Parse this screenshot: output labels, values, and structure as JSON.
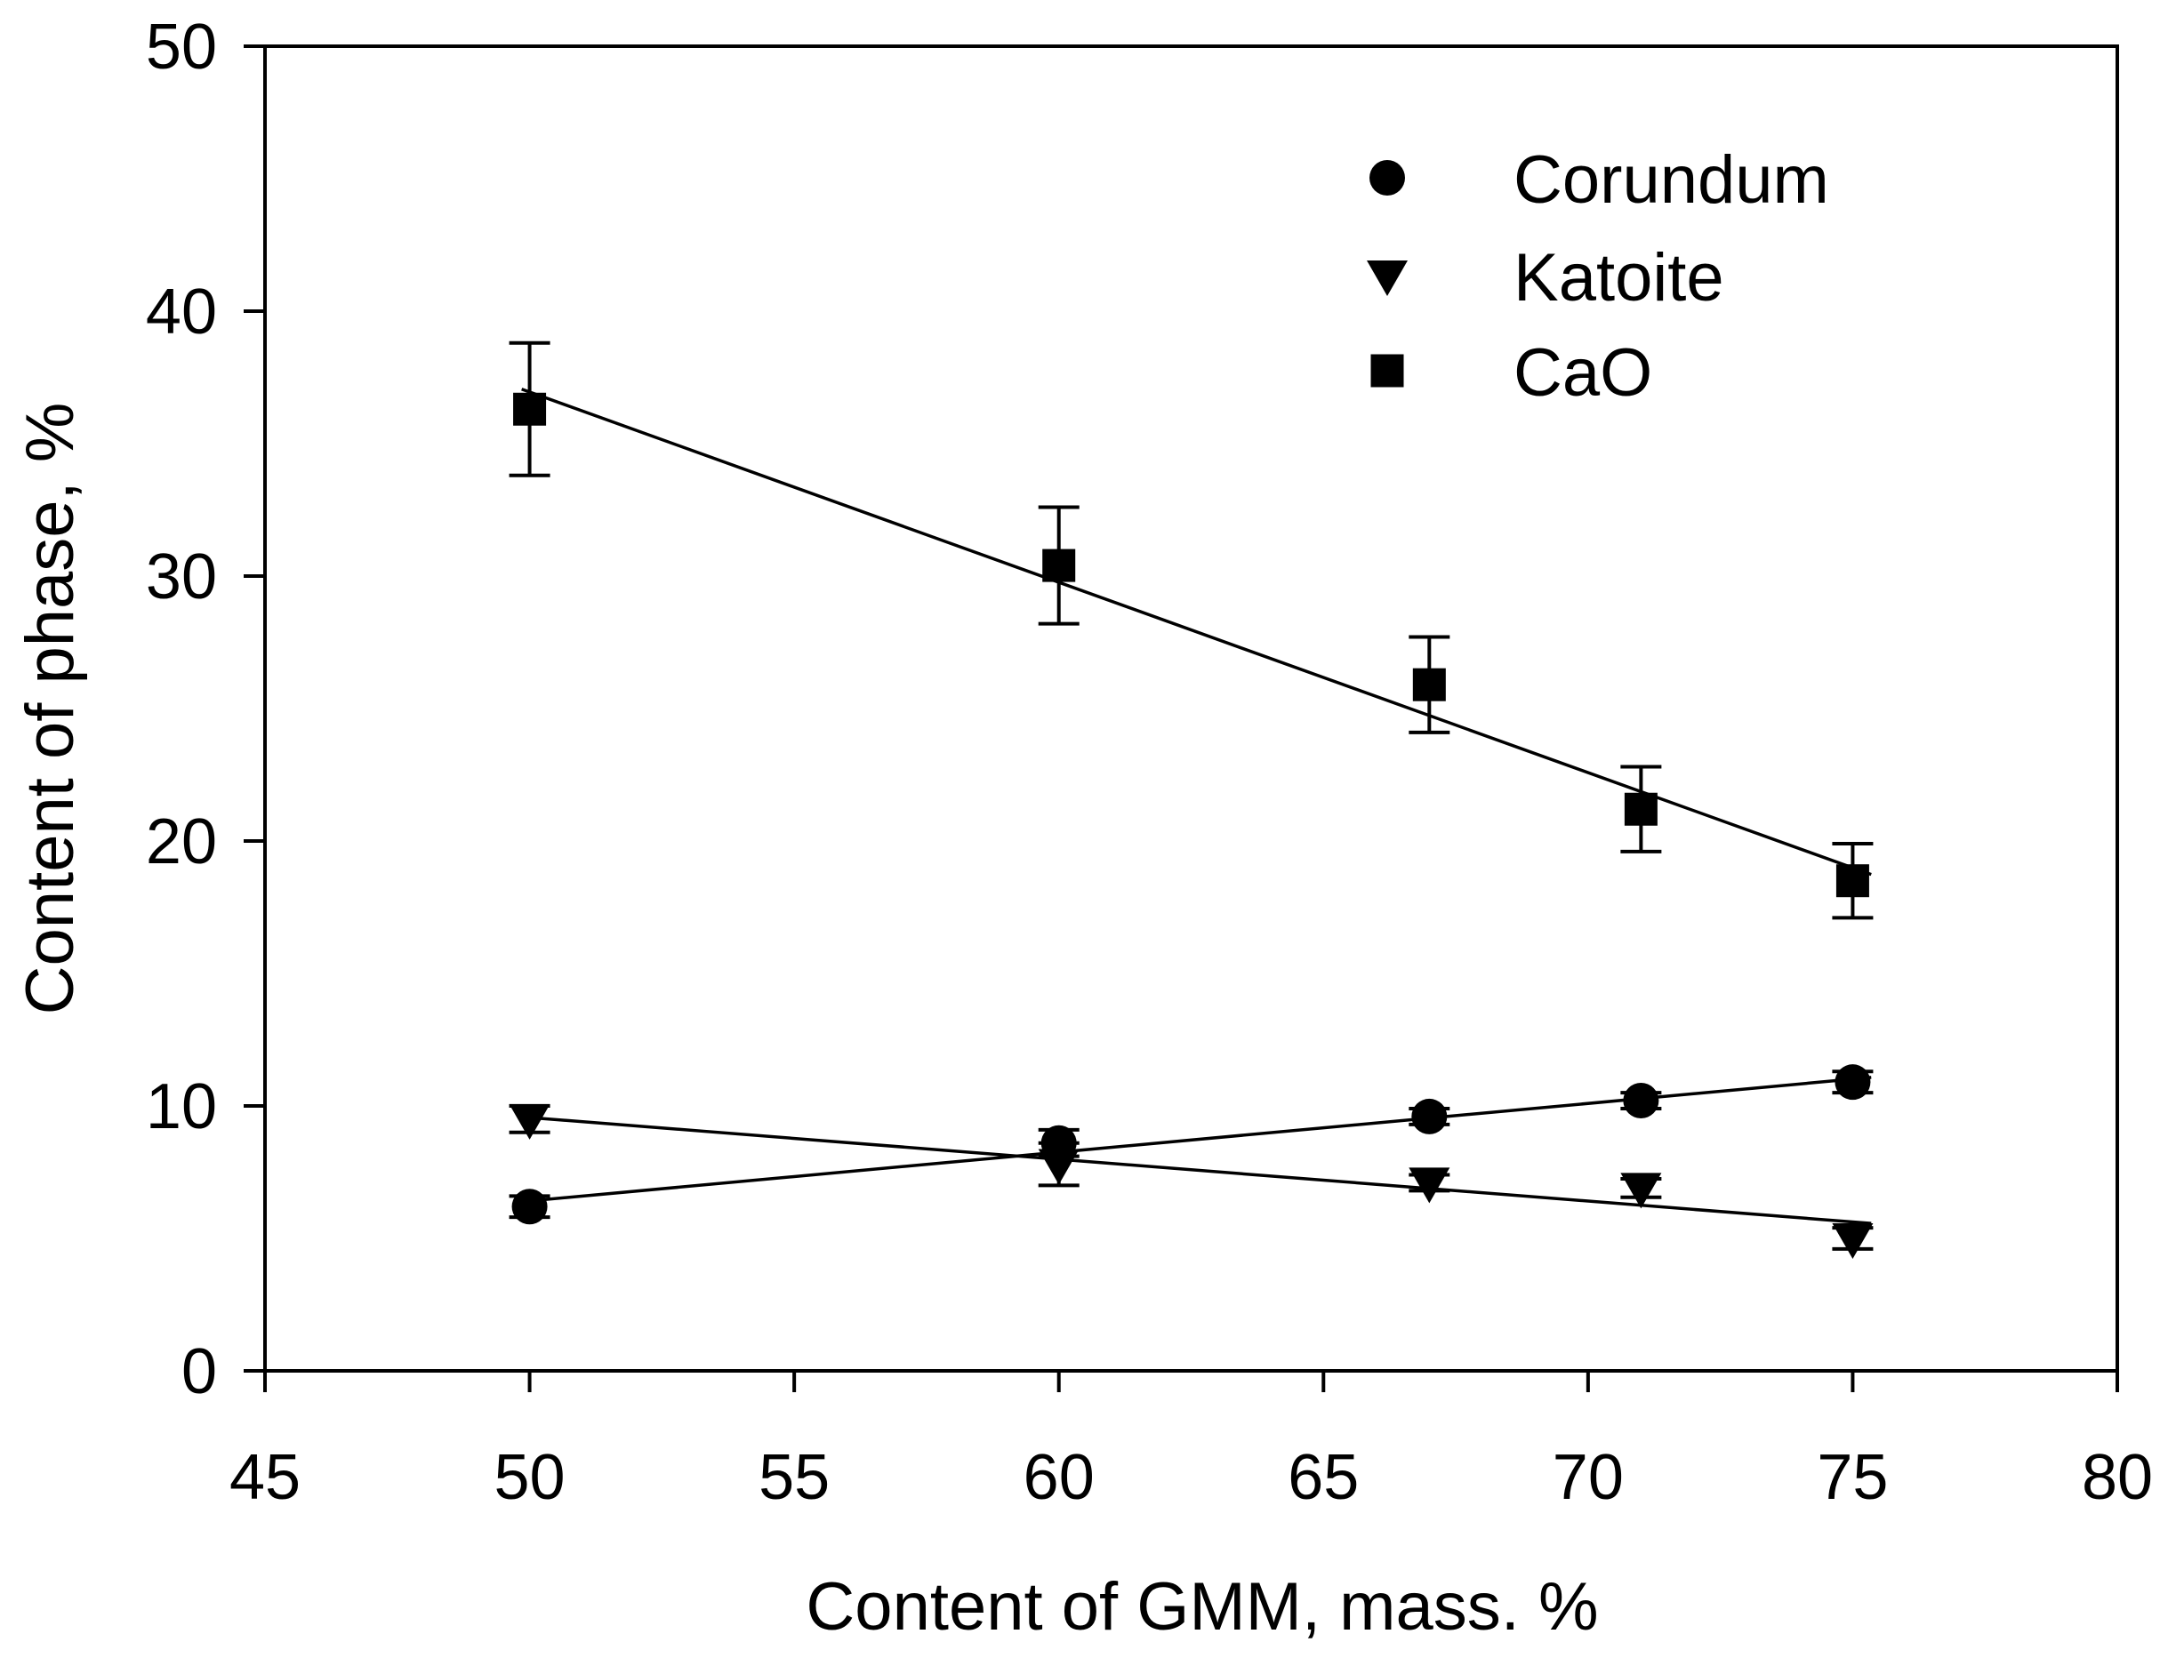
{
  "figure": {
    "background_color": "#ffffff",
    "foreground_color": "#000000"
  },
  "chart_data": {
    "type": "scatter",
    "title": "",
    "xlabel": "Content of GMM, mass. %",
    "ylabel": "Content of phase, %",
    "xlim": [
      45,
      80
    ],
    "ylim": [
      0,
      50
    ],
    "x_ticks": [
      45,
      50,
      55,
      60,
      65,
      70,
      75,
      80
    ],
    "y_ticks": [
      0,
      10,
      20,
      30,
      40,
      50
    ],
    "grid": false,
    "frame": "full-box",
    "legend_position": "upper-right-inside",
    "marker_color": "#000000",
    "line_color": "#000000",
    "series": [
      {
        "name": "Corundum",
        "marker": "circle",
        "x": [
          50,
          60,
          67,
          71,
          75
        ],
        "y": [
          6.2,
          8.6,
          9.6,
          10.2,
          10.9
        ],
        "yerr": [
          0.4,
          0.5,
          0.3,
          0.3,
          0.4
        ],
        "trendline": "linear"
      },
      {
        "name": "Katoite",
        "marker": "triangle-down",
        "x": [
          50,
          60,
          67,
          71,
          75
        ],
        "y": [
          9.5,
          7.8,
          7.1,
          6.9,
          5.0
        ],
        "yerr": [
          0.5,
          0.8,
          0.3,
          0.35,
          0.4
        ],
        "trendline": "linear"
      },
      {
        "name": "CaO",
        "marker": "square",
        "x": [
          50,
          60,
          67,
          71,
          75
        ],
        "y": [
          36.3,
          30.4,
          25.9,
          21.2,
          18.5
        ],
        "yerr": [
          2.5,
          2.2,
          1.8,
          1.6,
          1.4
        ],
        "trendline": "linear"
      }
    ]
  }
}
